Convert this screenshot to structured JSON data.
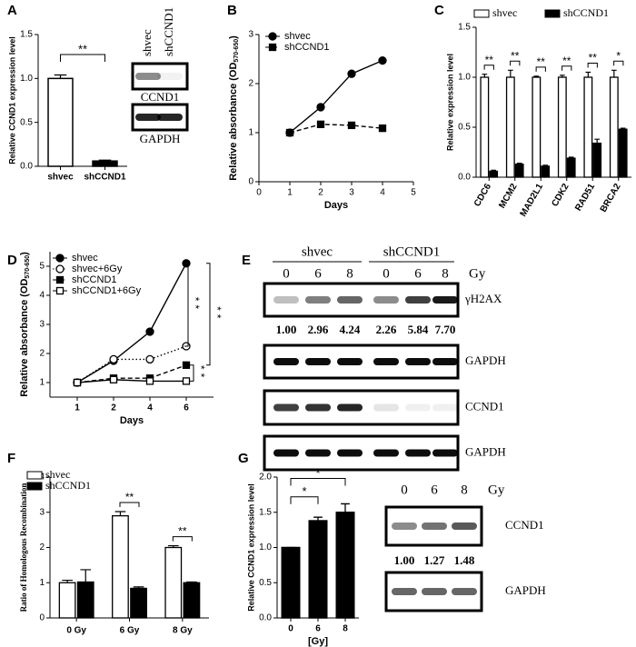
{
  "chart_data": [
    {
      "type": "bar",
      "panel": "A",
      "ylabel": "Relative CCND1 expression level",
      "categories": [
        "shvec",
        "shCCND1"
      ],
      "values": [
        1.0,
        0.06
      ],
      "errors": [
        0.04,
        0.01
      ],
      "colors": [
        "#ffffff",
        "#000000"
      ],
      "ylim": [
        0,
        1.5
      ],
      "yticks": [
        {
          "value": 0,
          "label": "0.0"
        },
        0.5,
        {
          "value": 1,
          "label": "1.0"
        },
        1.5
      ],
      "annotations": [
        "**"
      ]
    },
    {
      "type": "line",
      "panel": "B",
      "ylabel": [
        "Relative absorbance (OD",
        "570-650",
        ")"
      ],
      "xlabel": "Days",
      "x": [
        1,
        2,
        3,
        4
      ],
      "xlim": [
        0,
        5
      ],
      "xticks": [
        0,
        1,
        2,
        3,
        4,
        5
      ],
      "ylim": [
        0,
        3
      ],
      "yticks": [
        0,
        1,
        2,
        3
      ],
      "series": [
        {
          "name": "shvec",
          "values": [
            1.0,
            1.52,
            2.2,
            2.47
          ],
          "marker": "circle",
          "filled": true,
          "line_style": "solid"
        },
        {
          "name": "shCCND1",
          "values": [
            1.0,
            1.17,
            1.15,
            1.09
          ],
          "marker": "square",
          "filled": true,
          "line_style": "dashed"
        }
      ]
    },
    {
      "type": "grouped_bar",
      "panel": "C",
      "ylabel": "Relative expression level",
      "categories": [
        "CDC6",
        "MCM2",
        "MAD2L1",
        "CDK2",
        "RAD51",
        "BRCA2"
      ],
      "ylim": [
        0,
        1.5
      ],
      "yticks": [
        {
          "value": 0,
          "label": "0.0"
        },
        0.5,
        {
          "value": 1,
          "label": "1.0"
        },
        1.5
      ],
      "series": [
        {
          "name": "shvec",
          "color": "#ffffff",
          "values": [
            1.0,
            1.0,
            1.0,
            1.0,
            1.0,
            1.0
          ],
          "errors": [
            0.03,
            0.07,
            0.01,
            0.02,
            0.05,
            0.07
          ]
        },
        {
          "name": "shCCND1",
          "color": "#000000",
          "values": [
            0.06,
            0.13,
            0.11,
            0.19,
            0.34,
            0.48
          ],
          "errors": [
            0.01,
            0.01,
            0.01,
            0.01,
            0.04,
            0.01
          ]
        }
      ],
      "annotations": [
        "**",
        "**",
        "**",
        "**",
        "**",
        "*"
      ]
    },
    {
      "type": "line",
      "panel": "D",
      "ylabel": [
        "Relative absorbance (OD",
        "570-650",
        ")"
      ],
      "xlabel": "Days",
      "categories": [
        "1",
        "2",
        "4",
        "6"
      ],
      "ylim": [
        0.5,
        5.5
      ],
      "yticks": [
        1,
        2,
        3,
        4,
        5
      ],
      "series": [
        {
          "name": "shvec",
          "values": [
            1.0,
            1.75,
            2.75,
            5.1
          ],
          "marker": "circle",
          "filled": true,
          "line_style": "solid"
        },
        {
          "name": "shvec+6Gy",
          "values": [
            1.0,
            1.8,
            1.8,
            2.25
          ],
          "marker": "circle",
          "filled": false,
          "line_style": "dotted"
        },
        {
          "name": "shCCND1",
          "values": [
            1.0,
            1.15,
            1.15,
            1.6
          ],
          "marker": "square",
          "filled": true,
          "line_style": "dashed"
        },
        {
          "name": "shCCND1+6Gy",
          "values": [
            1.0,
            1.1,
            1.05,
            1.05
          ],
          "marker": "square",
          "filled": false,
          "line_style": "solid"
        }
      ],
      "annotations": [
        "**",
        "**",
        "**"
      ]
    },
    {
      "type": "grouped_bar",
      "panel": "F",
      "ylabel": "Ratio of Homologous Recombination",
      "categories": [
        "0 Gy",
        "6 Gy",
        "8 Gy"
      ],
      "ylim": [
        0,
        4
      ],
      "yticks": [
        0,
        1,
        2,
        3,
        4
      ],
      "series": [
        {
          "name": "shvec",
          "color": "#ffffff",
          "values": [
            1.0,
            2.9,
            2.0
          ],
          "errors": [
            0.07,
            0.12,
            0.05
          ]
        },
        {
          "name": "shCCND1",
          "color": "#000000",
          "values": [
            1.02,
            0.84,
            1.0
          ],
          "errors": [
            0.35,
            0.04,
            0.02
          ]
        }
      ],
      "annotations": [
        "**",
        "**"
      ]
    },
    {
      "type": "bar",
      "panel": "G",
      "ylabel": "Relative CCND1 expression level",
      "xlabel": "[Gy]",
      "categories": [
        "0",
        "6",
        "8"
      ],
      "values": [
        1.0,
        1.38,
        1.5
      ],
      "errors": [
        0.0,
        0.05,
        0.12
      ],
      "colors": [
        "#000000",
        "#000000",
        "#000000"
      ],
      "ylim": [
        0,
        2
      ],
      "yticks": [
        {
          "value": 0,
          "label": "0.0"
        },
        0.5,
        {
          "value": 1,
          "label": "1.0"
        },
        1.5,
        {
          "value": 2,
          "label": "2.0"
        }
      ],
      "annotations": [
        "*",
        "*"
      ]
    }
  ],
  "blots": {
    "A": {
      "columns": [
        "shvec",
        "shCCND1"
      ],
      "rows": [
        "CCND1",
        "GAPDH"
      ]
    },
    "E": {
      "panel": "E",
      "groups": [
        "shvec",
        "shCCND1"
      ],
      "lanes": [
        "0",
        "6",
        "8",
        "0",
        "6",
        "8"
      ],
      "unit": "Gy",
      "rows": [
        "γH2AX",
        "GAPDH",
        "CCND1",
        "GAPDH"
      ],
      "quant": [
        "1.00",
        "2.96",
        "4.24",
        "2.26",
        "5.84",
        "7.70"
      ]
    },
    "G": {
      "lanes": [
        "0",
        "6",
        "8"
      ],
      "unit": "Gy",
      "rows": [
        "CCND1",
        "GAPDH"
      ],
      "quant": [
        "1.00",
        "1.27",
        "1.48"
      ]
    }
  }
}
